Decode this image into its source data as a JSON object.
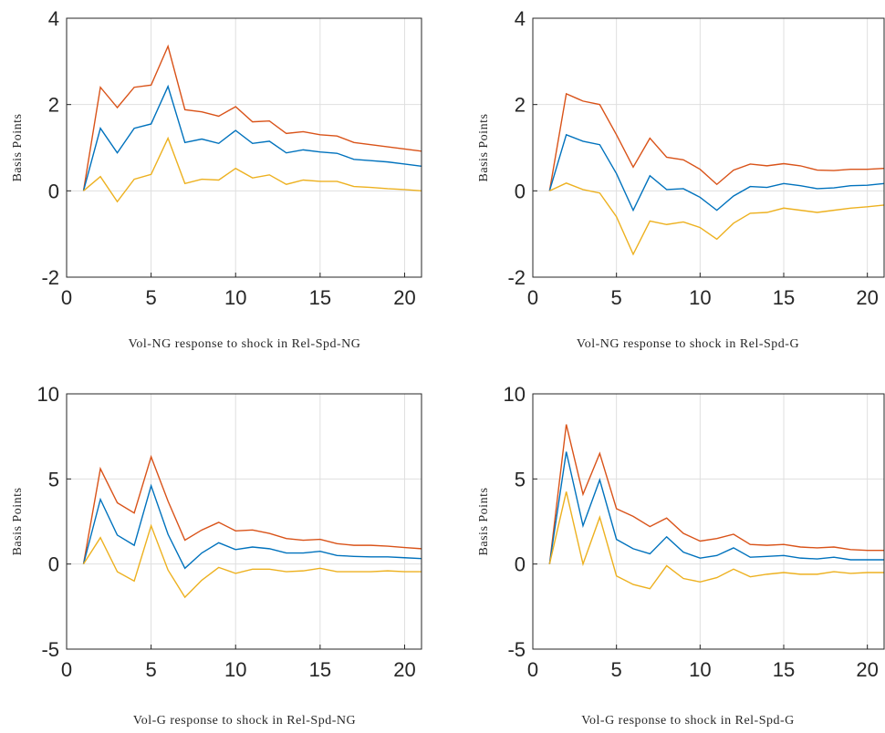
{
  "chart_data": [
    {
      "type": "line",
      "xlabel": "Vol-NG response to shock in Rel-Spd-NG",
      "ylabel": "Basis Points",
      "x": [
        1,
        2,
        3,
        4,
        5,
        6,
        7,
        8,
        9,
        10,
        11,
        12,
        13,
        14,
        15,
        16,
        17,
        18,
        19,
        20,
        21
      ],
      "series": [
        {
          "color": "#D95319",
          "values": [
            0,
            2.4,
            1.93,
            2.4,
            2.45,
            3.35,
            1.88,
            1.83,
            1.73,
            1.95,
            1.6,
            1.62,
            1.33,
            1.37,
            1.3,
            1.27,
            1.12,
            1.07,
            1.02,
            0.97,
            0.92
          ]
        },
        {
          "color": "#0072BD",
          "values": [
            0,
            1.45,
            0.88,
            1.45,
            1.55,
            2.42,
            1.12,
            1.2,
            1.1,
            1.4,
            1.1,
            1.15,
            0.88,
            0.95,
            0.9,
            0.87,
            0.73,
            0.7,
            0.67,
            0.62,
            0.57
          ]
        },
        {
          "color": "#EDB120",
          "values": [
            0,
            0.33,
            -0.25,
            0.27,
            0.38,
            1.22,
            0.17,
            0.27,
            0.25,
            0.52,
            0.3,
            0.37,
            0.15,
            0.25,
            0.22,
            0.22,
            0.1,
            0.08,
            0.05,
            0.03,
            0.0
          ]
        }
      ],
      "xlim": [
        0,
        21
      ],
      "ylim": [
        -2,
        4
      ],
      "xticks": [
        0,
        5,
        10,
        15,
        20
      ],
      "yticks": [
        -2,
        0,
        2,
        4
      ],
      "grid": true
    },
    {
      "type": "line",
      "xlabel": "Vol-NG response to shock in Rel-Spd-G",
      "ylabel": "Basis Points",
      "x": [
        1,
        2,
        3,
        4,
        5,
        6,
        7,
        8,
        9,
        10,
        11,
        12,
        13,
        14,
        15,
        16,
        17,
        18,
        19,
        20,
        21
      ],
      "series": [
        {
          "color": "#D95319",
          "values": [
            0,
            2.25,
            2.08,
            2.0,
            1.3,
            0.55,
            1.22,
            0.78,
            0.72,
            0.5,
            0.15,
            0.48,
            0.62,
            0.58,
            0.63,
            0.58,
            0.48,
            0.47,
            0.5,
            0.5,
            0.52
          ]
        },
        {
          "color": "#0072BD",
          "values": [
            0,
            1.3,
            1.15,
            1.07,
            0.4,
            -0.45,
            0.35,
            0.03,
            0.05,
            -0.15,
            -0.45,
            -0.12,
            0.1,
            0.08,
            0.17,
            0.12,
            0.05,
            0.07,
            0.12,
            0.13,
            0.17
          ]
        },
        {
          "color": "#EDB120",
          "values": [
            0,
            0.18,
            0.03,
            -0.05,
            -0.6,
            -1.47,
            -0.7,
            -0.78,
            -0.72,
            -0.85,
            -1.12,
            -0.75,
            -0.52,
            -0.5,
            -0.4,
            -0.45,
            -0.5,
            -0.45,
            -0.4,
            -0.37,
            -0.33
          ]
        }
      ],
      "xlim": [
        0,
        21
      ],
      "ylim": [
        -2,
        4
      ],
      "xticks": [
        0,
        5,
        10,
        15,
        20
      ],
      "yticks": [
        -2,
        0,
        2,
        4
      ],
      "grid": true
    },
    {
      "type": "line",
      "xlabel": "Vol-G response to shock in Rel-Spd-NG",
      "ylabel": "Basis Points",
      "x": [
        1,
        2,
        3,
        4,
        5,
        6,
        7,
        8,
        9,
        10,
        11,
        12,
        13,
        14,
        15,
        16,
        17,
        18,
        19,
        20,
        21
      ],
      "series": [
        {
          "color": "#D95319",
          "values": [
            0,
            5.6,
            3.6,
            3.0,
            6.3,
            3.7,
            1.4,
            2.0,
            2.45,
            1.95,
            2.0,
            1.8,
            1.5,
            1.4,
            1.45,
            1.2,
            1.1,
            1.1,
            1.05,
            0.97,
            0.9
          ]
        },
        {
          "color": "#0072BD",
          "values": [
            0,
            3.8,
            1.7,
            1.1,
            4.6,
            1.75,
            -0.25,
            0.65,
            1.25,
            0.85,
            1.0,
            0.9,
            0.65,
            0.65,
            0.75,
            0.5,
            0.45,
            0.42,
            0.42,
            0.37,
            0.32
          ]
        },
        {
          "color": "#EDB120",
          "values": [
            0,
            1.55,
            -0.45,
            -1.0,
            2.25,
            -0.35,
            -1.95,
            -0.95,
            -0.2,
            -0.55,
            -0.3,
            -0.3,
            -0.45,
            -0.4,
            -0.25,
            -0.45,
            -0.45,
            -0.45,
            -0.4,
            -0.45,
            -0.45
          ]
        }
      ],
      "xlim": [
        0,
        21
      ],
      "ylim": [
        -5,
        10
      ],
      "xticks": [
        0,
        5,
        10,
        15,
        20
      ],
      "yticks": [
        -5,
        0,
        5,
        10
      ],
      "grid": true
    },
    {
      "type": "line",
      "xlabel": "Vol-G response to shock in Rel-Spd-G",
      "ylabel": "Basis Points",
      "x": [
        1,
        2,
        3,
        4,
        5,
        6,
        7,
        8,
        9,
        10,
        11,
        12,
        13,
        14,
        15,
        16,
        17,
        18,
        19,
        20,
        21
      ],
      "series": [
        {
          "color": "#D95319",
          "values": [
            0,
            8.2,
            4.1,
            6.5,
            3.25,
            2.8,
            2.2,
            2.7,
            1.8,
            1.35,
            1.5,
            1.75,
            1.15,
            1.1,
            1.15,
            1.0,
            0.95,
            1.0,
            0.85,
            0.8,
            0.8
          ]
        },
        {
          "color": "#0072BD",
          "values": [
            0,
            6.6,
            2.25,
            4.95,
            1.45,
            0.9,
            0.6,
            1.6,
            0.7,
            0.35,
            0.5,
            0.95,
            0.4,
            0.45,
            0.5,
            0.35,
            0.3,
            0.4,
            0.25,
            0.25,
            0.25
          ]
        },
        {
          "color": "#EDB120",
          "values": [
            0,
            4.25,
            0.0,
            2.75,
            -0.7,
            -1.2,
            -1.45,
            -0.1,
            -0.85,
            -1.05,
            -0.8,
            -0.3,
            -0.75,
            -0.6,
            -0.5,
            -0.6,
            -0.6,
            -0.45,
            -0.55,
            -0.5,
            -0.5
          ]
        }
      ],
      "xlim": [
        0,
        21
      ],
      "ylim": [
        -5,
        10
      ],
      "xticks": [
        0,
        5,
        10,
        15,
        20
      ],
      "yticks": [
        -5,
        0,
        5,
        10
      ],
      "grid": true
    }
  ]
}
